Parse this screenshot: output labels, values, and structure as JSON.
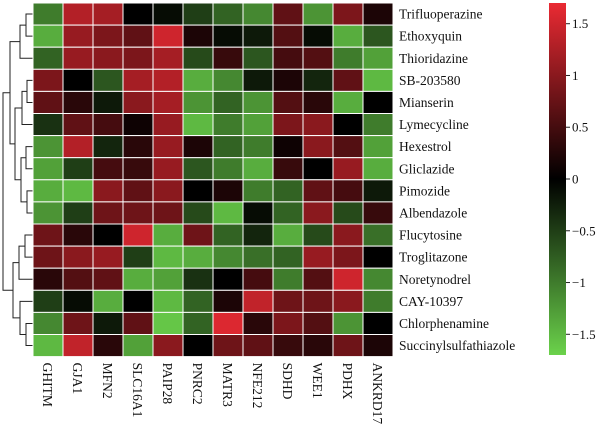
{
  "chart_data": {
    "type": "heatmap",
    "title": "",
    "xlabel": "",
    "ylabel": "",
    "rows": [
      "Trifluoperazine",
      "Ethoxyquin",
      "Thioridazine",
      "SB-203580",
      "Mianserin",
      "Lymecycline",
      "Hexestrol",
      "Gliclazide",
      "Pimozide",
      "Albendazole",
      "Flucytosine",
      "Troglitazone",
      "Noretynodrel",
      "CAY-10397",
      "Chlorphenamine",
      "Succinylsulfathiazole"
    ],
    "columns": [
      "GHITM",
      "GJA1",
      "MFN2",
      "SLC16A1",
      "PAIP28",
      "PNRC2",
      "MATR3",
      "NFE212",
      "SDHD",
      "WEE1",
      "PDHX",
      "ANKRD17"
    ],
    "values": [
      [
        -1.0,
        1.3,
        1.2,
        0.0,
        -0.1,
        -0.5,
        -0.8,
        -1.1,
        0.7,
        -1.2,
        0.9,
        0.2
      ],
      [
        -1.4,
        1.1,
        0.9,
        0.7,
        1.5,
        0.2,
        -0.1,
        -0.2,
        0.6,
        -0.1,
        -1.4,
        -0.7
      ],
      [
        -0.8,
        1.1,
        1.0,
        0.9,
        1.2,
        -0.6,
        0.4,
        -0.7,
        0.5,
        0.6,
        -1.0,
        -1.3
      ],
      [
        0.9,
        0.0,
        -0.7,
        1.2,
        1.3,
        -1.4,
        -1.1,
        -0.2,
        0.2,
        -0.3,
        0.7,
        -1.5
      ],
      [
        0.7,
        0.3,
        -0.2,
        1.0,
        1.2,
        -1.2,
        -0.8,
        -1.2,
        0.6,
        0.3,
        -1.4,
        0.0
      ],
      [
        -0.4,
        0.7,
        0.5,
        0.1,
        1.1,
        -1.5,
        -1.0,
        -1.3,
        0.9,
        1.0,
        0.0,
        -1.0
      ],
      [
        -1.2,
        1.3,
        -0.3,
        0.3,
        1.1,
        0.2,
        -0.8,
        -1.0,
        0.1,
        1.0,
        0.6,
        -1.3
      ],
      [
        -1.3,
        -0.5,
        0.5,
        0.4,
        1.1,
        -0.7,
        -1.0,
        -1.4,
        0.4,
        0.0,
        1.1,
        -1.4
      ],
      [
        -1.4,
        -1.5,
        1.0,
        0.7,
        1.0,
        0.0,
        0.2,
        -1.0,
        -0.8,
        0.7,
        0.5,
        -0.2
      ],
      [
        -1.2,
        -0.5,
        0.8,
        0.8,
        0.8,
        -0.6,
        -1.5,
        -0.1,
        -0.8,
        1.0,
        -0.6,
        0.4
      ],
      [
        0.8,
        0.3,
        0.0,
        1.5,
        -1.4,
        0.8,
        -0.8,
        -0.3,
        -1.4,
        -0.6,
        1.0,
        -0.9
      ],
      [
        0.8,
        1.0,
        1.1,
        -0.5,
        -1.5,
        -1.4,
        -1.1,
        -0.9,
        -0.8,
        1.1,
        0.9,
        0.0
      ],
      [
        0.3,
        0.6,
        0.7,
        -1.4,
        -1.3,
        -0.4,
        0.0,
        0.5,
        -1.0,
        0.6,
        1.5,
        -1.1
      ],
      [
        -0.5,
        -0.1,
        -1.4,
        0.0,
        -1.5,
        -0.8,
        0.2,
        1.4,
        0.8,
        0.8,
        1.0,
        -1.0
      ],
      [
        -1.1,
        0.8,
        -0.2,
        0.7,
        -1.6,
        -0.8,
        1.6,
        0.3,
        0.9,
        0.6,
        -1.2,
        0.0
      ],
      [
        -1.5,
        1.4,
        0.3,
        -1.3,
        1.0,
        0.0,
        0.8,
        0.7,
        0.4,
        0.3,
        0.8,
        0.2
      ]
    ],
    "colorbar": {
      "min": -1.7,
      "max": 1.7,
      "ticks": [
        1.5,
        1,
        0.5,
        0,
        -0.5,
        -1,
        -1.5
      ],
      "tick_labels": [
        "1.5",
        "1",
        "0.5",
        "0",
        "−0.5",
        "−1",
        "−1.5"
      ],
      "colors": {
        "low": "#6bd24b",
        "mid": "#000000",
        "high": "#ea2a33"
      }
    },
    "grid": true,
    "dendrogram": "left"
  }
}
